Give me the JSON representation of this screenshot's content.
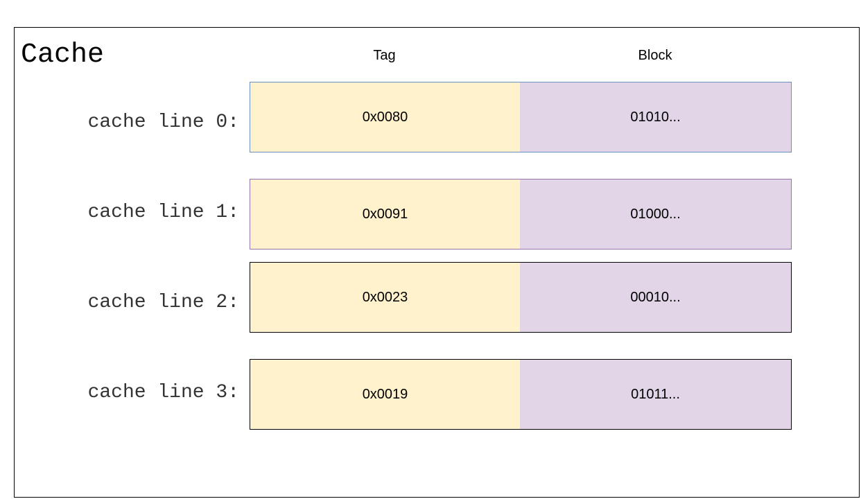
{
  "title": "Cache",
  "headers": {
    "tag": "Tag",
    "block": "Block"
  },
  "colors": {
    "tag_fill": "#fff2cc",
    "block_fill": "#e1d5e7",
    "row_borders": [
      "#6c8ebf",
      "#9673a6",
      "#000000",
      "#000000"
    ]
  },
  "lines": [
    {
      "label": "cache line 0:",
      "tag": "0x0080",
      "block": "01010..."
    },
    {
      "label": "cache line 1:",
      "tag": "0x0091",
      "block": "01000..."
    },
    {
      "label": "cache line 2:",
      "tag": "0x0023",
      "block": "00010..."
    },
    {
      "label": "cache line 3:",
      "tag": "0x0019",
      "block": "01011..."
    }
  ]
}
